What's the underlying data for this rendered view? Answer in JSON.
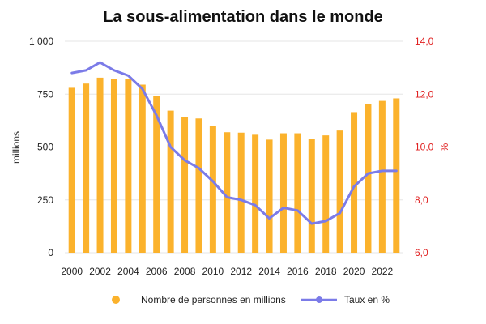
{
  "chart_data": {
    "type": "bar+line",
    "title": "La sous-alimentation dans le monde",
    "categories": [
      "2000",
      "2001",
      "2002",
      "2003",
      "2004",
      "2005",
      "2006",
      "2007",
      "2008",
      "2009",
      "2010",
      "2011",
      "2012",
      "2013",
      "2014",
      "2015",
      "2016",
      "2017",
      "2018",
      "2019",
      "2020",
      "2021",
      "2022",
      "2023"
    ],
    "x_tick_labels": [
      "2000",
      "2002",
      "2004",
      "2006",
      "2008",
      "2010",
      "2012",
      "2014",
      "2016",
      "2018",
      "2020",
      "2022"
    ],
    "series": [
      {
        "name": "Nombre de personnes en millions",
        "type": "bar",
        "axis": "left",
        "color": "#fbb22c",
        "values": [
          780,
          800,
          828,
          820,
          820,
          795,
          740,
          672,
          642,
          635,
          600,
          570,
          568,
          558,
          535,
          565,
          565,
          540,
          555,
          578,
          665,
          705,
          718,
          730
        ]
      },
      {
        "name": "Taux en %",
        "type": "line",
        "axis": "right",
        "color": "#7b7be8",
        "values": [
          12.8,
          12.9,
          13.2,
          12.9,
          12.7,
          12.2,
          11.2,
          10.0,
          9.5,
          9.2,
          8.7,
          8.1,
          8.0,
          7.8,
          7.3,
          7.7,
          7.6,
          7.1,
          7.2,
          7.5,
          8.5,
          9.0,
          9.1,
          9.1
        ]
      }
    ],
    "y_left": {
      "label": "millions",
      "min": 0,
      "max": 1000,
      "ticks": [
        0,
        250,
        500,
        750,
        1000
      ],
      "tick_labels": [
        "0",
        "250",
        "500",
        "750",
        "1 000"
      ]
    },
    "y_right": {
      "label": "%",
      "min": 6.0,
      "max": 14.0,
      "ticks": [
        6,
        8,
        10,
        12,
        14
      ],
      "tick_labels": [
        "6,0",
        "8,0",
        "10,0",
        "12,0",
        "14,0"
      ],
      "color": "#e02020"
    },
    "grid": true,
    "legend_position": "bottom"
  }
}
